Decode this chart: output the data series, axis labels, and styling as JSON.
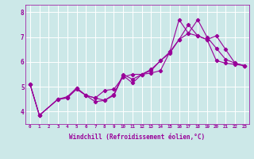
{
  "xlabel": "Windchill (Refroidissement éolien,°C)",
  "xlim": [
    -0.5,
    23.5
  ],
  "ylim": [
    3.5,
    8.3
  ],
  "yticks": [
    4,
    5,
    6,
    7,
    8
  ],
  "xticks": [
    0,
    1,
    2,
    3,
    4,
    5,
    6,
    7,
    8,
    9,
    10,
    11,
    12,
    13,
    14,
    15,
    16,
    17,
    18,
    19,
    20,
    21,
    22,
    23
  ],
  "bg_color": "#cce8e8",
  "line_color": "#990099",
  "line1_x": [
    0,
    1,
    3,
    4,
    5,
    6,
    7,
    8,
    9,
    10,
    11,
    12,
    13,
    14,
    15,
    16,
    17,
    18,
    19,
    20,
    21,
    22,
    23
  ],
  "line1_y": [
    5.1,
    3.85,
    4.5,
    4.6,
    4.95,
    4.65,
    4.55,
    4.45,
    4.7,
    5.5,
    5.3,
    5.5,
    5.65,
    6.05,
    6.35,
    6.9,
    7.5,
    7.05,
    6.9,
    7.05,
    6.5,
    5.95,
    5.85
  ],
  "line2_x": [
    0,
    1,
    3,
    4,
    5,
    6,
    7,
    8,
    9,
    10,
    11,
    12,
    13,
    14,
    15,
    16,
    17,
    18,
    19,
    20,
    21,
    22,
    23
  ],
  "line2_y": [
    5.1,
    3.85,
    4.5,
    4.55,
    4.95,
    4.65,
    4.4,
    4.45,
    4.65,
    5.45,
    5.15,
    5.5,
    5.7,
    6.05,
    6.4,
    7.7,
    7.15,
    7.7,
    7.0,
    6.55,
    6.1,
    5.95,
    5.85
  ],
  "line3_x": [
    0,
    1,
    3,
    4,
    5,
    6,
    7,
    8,
    9,
    10,
    11,
    12,
    13,
    14,
    15,
    16,
    17,
    18,
    19,
    20,
    21,
    22,
    23
  ],
  "line3_y": [
    5.1,
    3.85,
    4.5,
    4.55,
    4.9,
    4.65,
    4.55,
    4.85,
    4.9,
    5.4,
    5.5,
    5.5,
    5.55,
    5.65,
    6.4,
    6.9,
    7.15,
    7.05,
    6.9,
    6.05,
    5.95,
    5.9,
    5.85
  ]
}
